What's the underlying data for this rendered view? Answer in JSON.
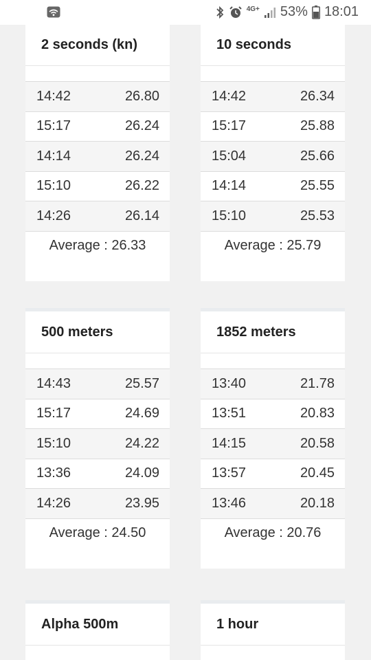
{
  "status_bar": {
    "battery": "53%",
    "time": "18:01",
    "network": "4G+"
  },
  "cards": [
    {
      "title": "2 seconds (kn)",
      "rows": [
        {
          "time": "14:42",
          "value": "26.80"
        },
        {
          "time": "15:17",
          "value": "26.24"
        },
        {
          "time": "14:14",
          "value": "26.24"
        },
        {
          "time": "15:10",
          "value": "26.22"
        },
        {
          "time": "14:26",
          "value": "26.14"
        }
      ],
      "average": "Average : 26.33"
    },
    {
      "title": "10 seconds",
      "rows": [
        {
          "time": "14:42",
          "value": "26.34"
        },
        {
          "time": "15:17",
          "value": "25.88"
        },
        {
          "time": "15:04",
          "value": "25.66"
        },
        {
          "time": "14:14",
          "value": "25.55"
        },
        {
          "time": "15:10",
          "value": "25.53"
        }
      ],
      "average": "Average : 25.79"
    },
    {
      "title": "500 meters",
      "rows": [
        {
          "time": "14:43",
          "value": "25.57"
        },
        {
          "time": "15:17",
          "value": "24.69"
        },
        {
          "time": "15:10",
          "value": "24.22"
        },
        {
          "time": "13:36",
          "value": "24.09"
        },
        {
          "time": "14:26",
          "value": "23.95"
        }
      ],
      "average": "Average : 24.50"
    },
    {
      "title": "1852 meters",
      "rows": [
        {
          "time": "13:40",
          "value": "21.78"
        },
        {
          "time": "13:51",
          "value": "20.83"
        },
        {
          "time": "14:15",
          "value": "20.58"
        },
        {
          "time": "13:57",
          "value": "20.45"
        },
        {
          "time": "13:46",
          "value": "20.18"
        }
      ],
      "average": "Average : 20.76"
    },
    {
      "title": "Alpha 500m"
    },
    {
      "title": "1 hour"
    }
  ]
}
